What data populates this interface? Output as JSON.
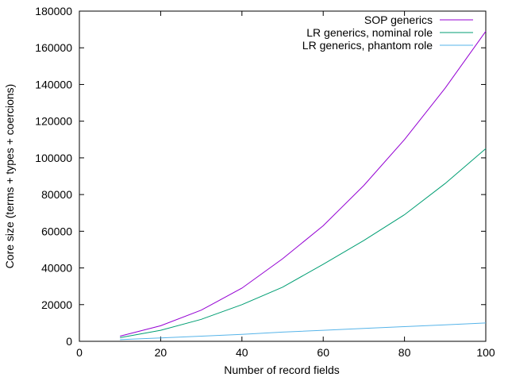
{
  "chart_data": {
    "type": "line",
    "title": "",
    "xlabel": "Number of record fields",
    "ylabel": "Core size (terms + types + coercions)",
    "xlim": [
      0,
      100
    ],
    "ylim": [
      0,
      180000
    ],
    "xticks": [
      0,
      20,
      40,
      60,
      80,
      100
    ],
    "yticks": [
      0,
      20000,
      40000,
      60000,
      80000,
      100000,
      120000,
      140000,
      160000,
      180000
    ],
    "grid": false,
    "legend_position": "top-right",
    "x": [
      10,
      20,
      30,
      40,
      50,
      60,
      70,
      80,
      90,
      100
    ],
    "series": [
      {
        "name": "SOP generics",
        "color": "#9400d3",
        "values": [
          2800,
          8500,
          17000,
          29000,
          45000,
          63000,
          85000,
          110000,
          138000,
          169000
        ]
      },
      {
        "name": "LR generics, nominal role",
        "color": "#009e73",
        "values": [
          2000,
          6000,
          12000,
          20000,
          29500,
          42000,
          55000,
          69000,
          86000,
          105000
        ]
      },
      {
        "name": "LR generics, phantom role",
        "color": "#56b4e9",
        "values": [
          900,
          1800,
          2800,
          3800,
          5000,
          6000,
          7000,
          8000,
          9000,
          10000
        ]
      }
    ]
  }
}
